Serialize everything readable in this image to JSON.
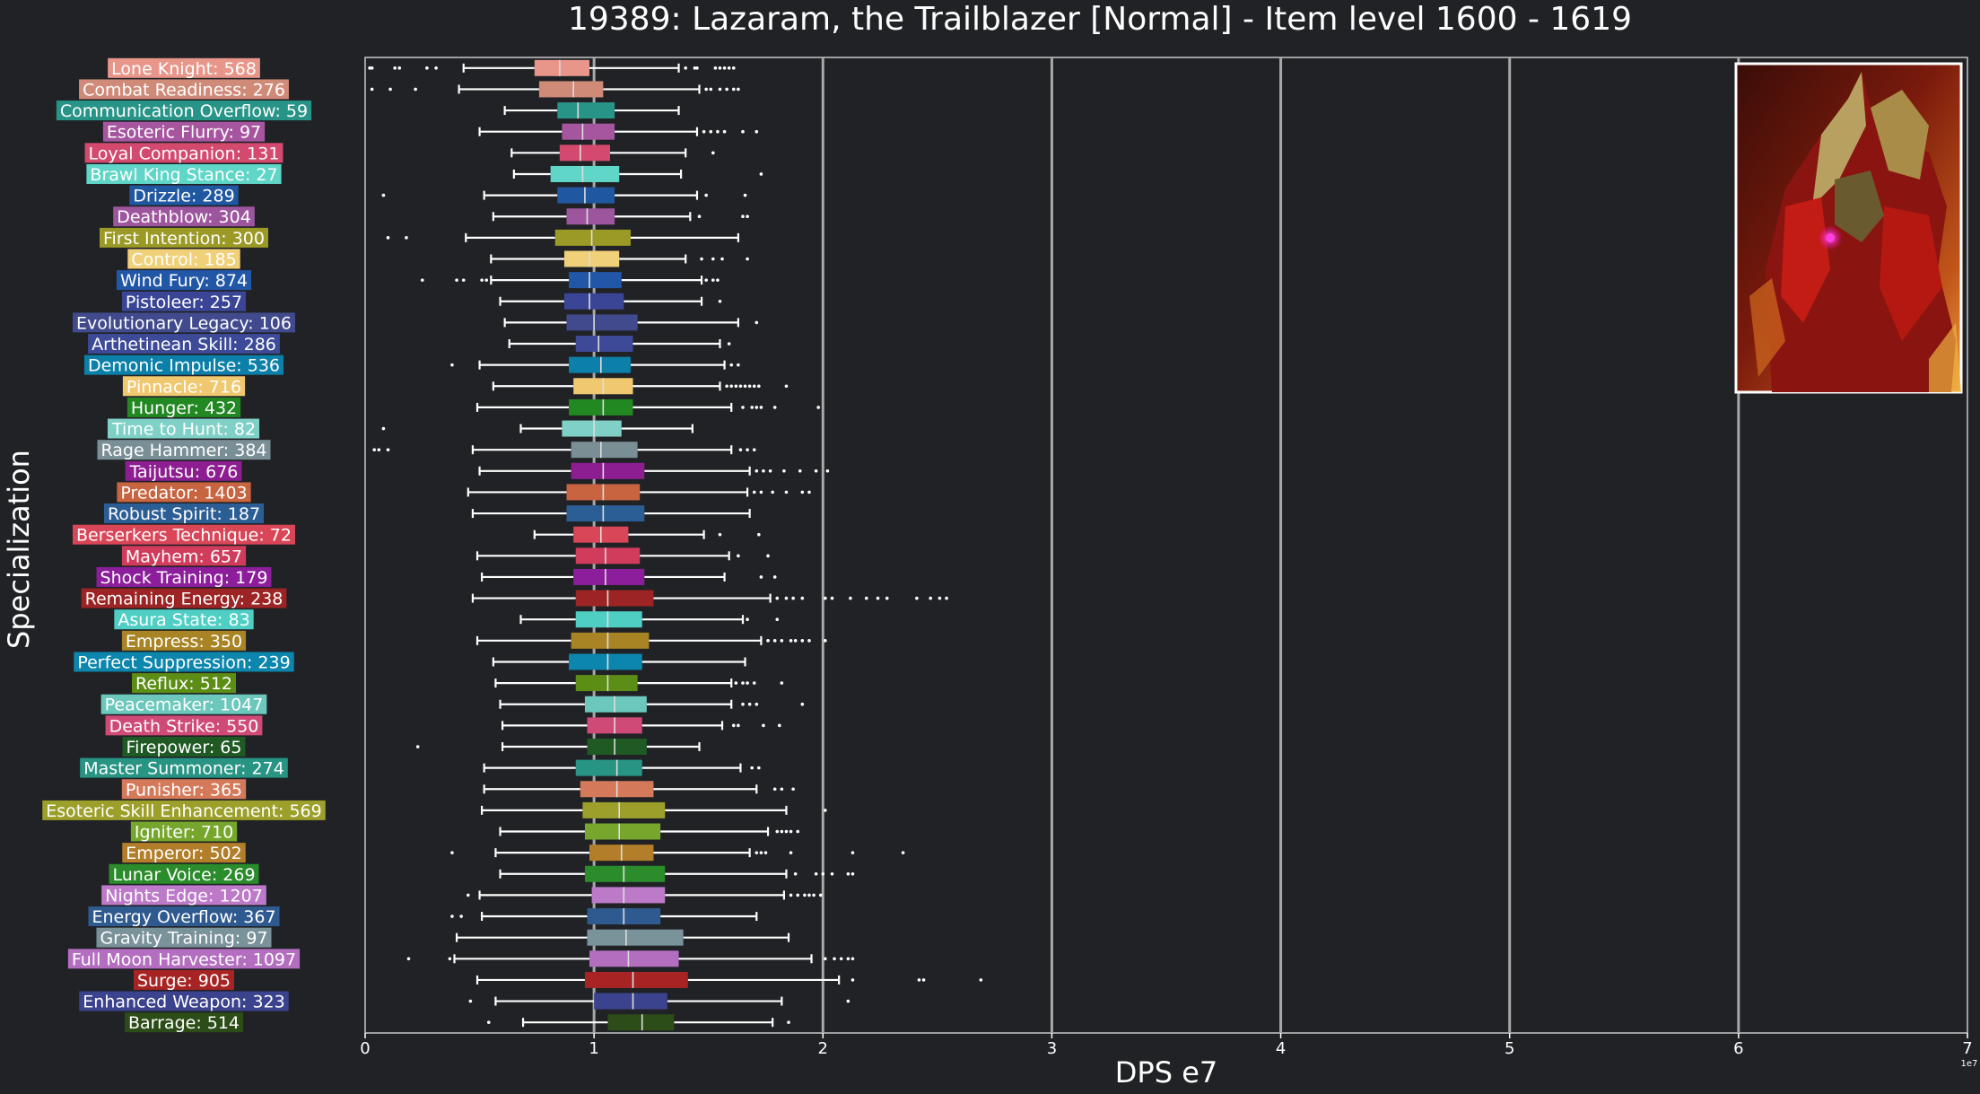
{
  "chart_data": {
    "type": "box",
    "title": "19389: Lazaram, the Trailblazer [Normal] - Item level 1600 - 1619",
    "xlabel": "DPS e7",
    "ylabel": "Specialization",
    "x_offset_label": "1e7",
    "xlim": [
      0,
      7
    ],
    "xticks": [
      0,
      1,
      2,
      3,
      4,
      5,
      6,
      7
    ],
    "grid": "vertical",
    "portrait_icon": "boss-portrait",
    "series": [
      {
        "label": "Lone Knight: 568",
        "color": "#e8968a",
        "whislo": 0.43,
        "q1": 0.74,
        "med": 0.85,
        "q3": 0.98,
        "whishi": 1.37,
        "fliers": [
          0.02,
          0.03,
          0.13,
          0.15,
          0.27,
          0.31,
          1.4,
          1.44,
          1.45,
          1.53,
          1.55,
          1.57,
          1.59,
          1.61
        ]
      },
      {
        "label": "Combat Readiness: 276",
        "color": "#d08a78",
        "whislo": 0.41,
        "q1": 0.76,
        "med": 0.91,
        "q3": 1.04,
        "whishi": 1.46,
        "fliers": [
          0.03,
          0.11,
          0.22,
          1.49,
          1.51,
          1.55,
          1.58,
          1.61,
          1.63
        ]
      },
      {
        "label": "Communication Overflow: 59",
        "color": "#289488",
        "whislo": 0.61,
        "q1": 0.84,
        "med": 0.93,
        "q3": 1.09,
        "whishi": 1.37,
        "fliers": []
      },
      {
        "label": "Esoteric Flurry: 97",
        "color": "#a6569f",
        "whislo": 0.5,
        "q1": 0.86,
        "med": 0.95,
        "q3": 1.09,
        "whishi": 1.45,
        "fliers": [
          1.48,
          1.51,
          1.54,
          1.57,
          1.65,
          1.71
        ]
      },
      {
        "label": "Loyal Companion: 131",
        "color": "#d34a6e",
        "whislo": 0.64,
        "q1": 0.85,
        "med": 0.94,
        "q3": 1.07,
        "whishi": 1.4,
        "fliers": [
          1.52
        ]
      },
      {
        "label": "Brawl King Stance: 27",
        "color": "#5fd6c8",
        "whislo": 0.65,
        "q1": 0.81,
        "med": 0.95,
        "q3": 1.11,
        "whishi": 1.38,
        "fliers": [
          1.73
        ]
      },
      {
        "label": "Drizzle: 289",
        "color": "#1f57a0",
        "whislo": 0.52,
        "q1": 0.84,
        "med": 0.96,
        "q3": 1.09,
        "whishi": 1.45,
        "fliers": [
          0.08,
          1.49,
          1.66
        ]
      },
      {
        "label": "Deathblow: 304",
        "color": "#9d569e",
        "whislo": 0.56,
        "q1": 0.88,
        "med": 0.97,
        "q3": 1.09,
        "whishi": 1.42,
        "fliers": [
          1.46,
          1.65,
          1.67
        ]
      },
      {
        "label": "First Intention: 300",
        "color": "#9c9a26",
        "whislo": 0.44,
        "q1": 0.83,
        "med": 0.99,
        "q3": 1.16,
        "whishi": 1.63,
        "fliers": [
          0.1,
          0.18
        ]
      },
      {
        "label": "Control: 185",
        "color": "#f0d078",
        "whislo": 0.55,
        "q1": 0.87,
        "med": 0.98,
        "q3": 1.11,
        "whishi": 1.4,
        "fliers": [
          1.47,
          1.52,
          1.56,
          1.67
        ]
      },
      {
        "label": "Wind Fury: 874",
        "color": "#2257a8",
        "whislo": 0.55,
        "q1": 0.89,
        "med": 0.98,
        "q3": 1.12,
        "whishi": 1.47,
        "fliers": [
          0.25,
          0.4,
          0.43,
          0.51,
          0.53,
          1.49,
          1.52,
          1.54
        ]
      },
      {
        "label": "Pistoleer: 257",
        "color": "#3a4596",
        "whislo": 0.59,
        "q1": 0.87,
        "med": 0.98,
        "q3": 1.13,
        "whishi": 1.47,
        "fliers": [
          1.55
        ]
      },
      {
        "label": "Evolutionary Legacy: 106",
        "color": "#414a8c",
        "whislo": 0.61,
        "q1": 0.88,
        "med": 1.0,
        "q3": 1.19,
        "whishi": 1.63,
        "fliers": [
          1.71
        ]
      },
      {
        "label": "Arthetinean Skill: 286",
        "color": "#3d4a98",
        "whislo": 0.63,
        "q1": 0.92,
        "med": 1.02,
        "q3": 1.17,
        "whishi": 1.55,
        "fliers": [
          1.59
        ]
      },
      {
        "label": "Demonic Impulse: 536",
        "color": "#0c80a8",
        "whislo": 0.5,
        "q1": 0.89,
        "med": 1.03,
        "q3": 1.16,
        "whishi": 1.57,
        "fliers": [
          0.38,
          1.6,
          1.63
        ]
      },
      {
        "label": "Pinnacle: 716",
        "color": "#f0c870",
        "whislo": 0.56,
        "q1": 0.91,
        "med": 1.04,
        "q3": 1.17,
        "whishi": 1.55,
        "fliers": [
          1.58,
          1.6,
          1.62,
          1.64,
          1.66,
          1.68,
          1.7,
          1.72,
          1.84
        ]
      },
      {
        "label": "Hunger: 432",
        "color": "#228822",
        "whislo": 0.49,
        "q1": 0.89,
        "med": 1.04,
        "q3": 1.17,
        "whishi": 1.6,
        "fliers": [
          1.65,
          1.69,
          1.71,
          1.73,
          1.79,
          1.98
        ]
      },
      {
        "label": "Time to Hunt: 82",
        "color": "#7fd0c6",
        "whislo": 0.68,
        "q1": 0.86,
        "med": 1.0,
        "q3": 1.12,
        "whishi": 1.43,
        "fliers": [
          0.08
        ]
      },
      {
        "label": "Rage Hammer: 384",
        "color": "#7a8e96",
        "whislo": 0.47,
        "q1": 0.9,
        "med": 1.03,
        "q3": 1.19,
        "whishi": 1.6,
        "fliers": [
          0.04,
          0.06,
          0.1,
          1.64,
          1.67,
          1.7
        ]
      },
      {
        "label": "Taijutsu: 676",
        "color": "#8c1e92",
        "whislo": 0.5,
        "q1": 0.9,
        "med": 1.04,
        "q3": 1.22,
        "whishi": 1.68,
        "fliers": [
          1.71,
          1.74,
          1.77,
          1.83,
          1.9,
          1.97,
          2.02
        ]
      },
      {
        "label": "Predator: 1403",
        "color": "#c86440",
        "whislo": 0.45,
        "q1": 0.88,
        "med": 1.04,
        "q3": 1.2,
        "whishi": 1.67,
        "fliers": [
          1.7,
          1.73,
          1.78,
          1.84,
          1.91,
          1.94
        ]
      },
      {
        "label": "Robust Spirit: 187",
        "color": "#2c5e96",
        "whislo": 0.47,
        "q1": 0.88,
        "med": 1.04,
        "q3": 1.22,
        "whishi": 1.68,
        "fliers": []
      },
      {
        "label": "Berserkers Technique: 72",
        "color": "#d94658",
        "whislo": 0.74,
        "q1": 0.91,
        "med": 1.03,
        "q3": 1.15,
        "whishi": 1.48,
        "fliers": [
          1.55,
          1.72
        ]
      },
      {
        "label": "Mayhem: 657",
        "color": "#d13c5c",
        "whislo": 0.49,
        "q1": 0.92,
        "med": 1.05,
        "q3": 1.2,
        "whishi": 1.59,
        "fliers": [
          1.63,
          1.76
        ]
      },
      {
        "label": "Shock Training: 179",
        "color": "#8c1e9c",
        "whislo": 0.51,
        "q1": 0.91,
        "med": 1.05,
        "q3": 1.22,
        "whishi": 1.57,
        "fliers": [
          1.73,
          1.79
        ]
      },
      {
        "label": "Remaining Energy: 238",
        "color": "#9c2424",
        "whislo": 0.47,
        "q1": 0.92,
        "med": 1.06,
        "q3": 1.26,
        "whishi": 1.77,
        "fliers": [
          1.8,
          1.84,
          1.87,
          1.91,
          2.01,
          2.04,
          2.12,
          2.19,
          2.24,
          2.28,
          2.41,
          2.47,
          2.51,
          2.54
        ]
      },
      {
        "label": "Asura State: 83",
        "color": "#4fcfc4",
        "whislo": 0.68,
        "q1": 0.92,
        "med": 1.06,
        "q3": 1.21,
        "whishi": 1.65,
        "fliers": [
          1.67,
          1.8
        ]
      },
      {
        "label": "Empress: 350",
        "color": "#a88424",
        "whislo": 0.49,
        "q1": 0.9,
        "med": 1.06,
        "q3": 1.24,
        "whishi": 1.73,
        "fliers": [
          1.76,
          1.79,
          1.82,
          1.86,
          1.88,
          1.91,
          1.94,
          2.01
        ]
      },
      {
        "label": "Perfect Suppression: 239",
        "color": "#0c86ac",
        "whislo": 0.56,
        "q1": 0.89,
        "med": 1.06,
        "q3": 1.21,
        "whishi": 1.66,
        "fliers": []
      },
      {
        "label": "Reflux: 512",
        "color": "#5c8e16",
        "whislo": 0.57,
        "q1": 0.92,
        "med": 1.06,
        "q3": 1.19,
        "whishi": 1.6,
        "fliers": [
          1.62,
          1.65,
          1.67,
          1.7,
          1.82
        ]
      },
      {
        "label": "Peacemaker: 1047",
        "color": "#6cc8bc",
        "whislo": 0.59,
        "q1": 0.96,
        "med": 1.09,
        "q3": 1.23,
        "whishi": 1.6,
        "fliers": [
          1.65,
          1.68,
          1.71,
          1.91
        ]
      },
      {
        "label": "Death Strike: 550",
        "color": "#d04a78",
        "whislo": 0.6,
        "q1": 0.97,
        "med": 1.09,
        "q3": 1.21,
        "whishi": 1.56,
        "fliers": [
          1.61,
          1.63,
          1.74,
          1.81
        ]
      },
      {
        "label": "Firepower: 65",
        "color": "#1f5a24",
        "whislo": 0.6,
        "q1": 0.97,
        "med": 1.09,
        "q3": 1.23,
        "whishi": 1.46,
        "fliers": [
          0.23
        ]
      },
      {
        "label": "Master Summoner: 274",
        "color": "#289484",
        "whislo": 0.52,
        "q1": 0.92,
        "med": 1.1,
        "q3": 1.21,
        "whishi": 1.64,
        "fliers": [
          1.69,
          1.72
        ]
      },
      {
        "label": "Punisher: 365",
        "color": "#d47a5a",
        "whislo": 0.52,
        "q1": 0.94,
        "med": 1.1,
        "q3": 1.26,
        "whishi": 1.71,
        "fliers": [
          1.79,
          1.82,
          1.87
        ]
      },
      {
        "label": "Esoteric Skill Enhancement: 569",
        "color": "#9ca02a",
        "whislo": 0.51,
        "q1": 0.95,
        "med": 1.11,
        "q3": 1.31,
        "whishi": 1.84,
        "fliers": [
          2.01
        ]
      },
      {
        "label": "Igniter: 710",
        "color": "#76a62c",
        "whislo": 0.59,
        "q1": 0.96,
        "med": 1.11,
        "q3": 1.29,
        "whishi": 1.76,
        "fliers": [
          1.8,
          1.82,
          1.84,
          1.86,
          1.89
        ]
      },
      {
        "label": "Emperor: 502",
        "color": "#b27e2a",
        "whislo": 0.57,
        "q1": 0.98,
        "med": 1.12,
        "q3": 1.26,
        "whishi": 1.68,
        "fliers": [
          0.38,
          1.71,
          1.73,
          1.75,
          1.86,
          2.13,
          2.35
        ]
      },
      {
        "label": "Lunar Voice: 269",
        "color": "#2a8c2a",
        "whislo": 0.59,
        "q1": 0.96,
        "med": 1.13,
        "q3": 1.31,
        "whishi": 1.84,
        "fliers": [
          1.88,
          1.97,
          2.0,
          2.04,
          2.11,
          2.13
        ]
      },
      {
        "label": "Nights Edge: 1207",
        "color": "#bc7ac8",
        "whislo": 0.5,
        "q1": 0.99,
        "med": 1.13,
        "q3": 1.31,
        "whishi": 1.83,
        "fliers": [
          0.45,
          1.86,
          1.89,
          1.92,
          1.94,
          1.96,
          1.99
        ]
      },
      {
        "label": "Energy Overflow: 367",
        "color": "#2f5a90",
        "whislo": 0.51,
        "q1": 0.97,
        "med": 1.13,
        "q3": 1.29,
        "whishi": 1.71,
        "fliers": [
          0.38,
          0.42
        ]
      },
      {
        "label": "Gravity Training: 97",
        "color": "#7a929a",
        "whislo": 0.4,
        "q1": 0.97,
        "med": 1.14,
        "q3": 1.39,
        "whishi": 1.85,
        "fliers": []
      },
      {
        "label": "Full Moon Harvester: 1097",
        "color": "#b46ec0",
        "whislo": 0.39,
        "q1": 0.98,
        "med": 1.15,
        "q3": 1.37,
        "whishi": 1.95,
        "fliers": [
          0.19,
          0.37,
          2.01,
          2.05,
          2.08,
          2.11,
          2.13
        ]
      },
      {
        "label": "Surge: 905",
        "color": "#a82424",
        "whislo": 0.49,
        "q1": 0.96,
        "med": 1.17,
        "q3": 1.41,
        "whishi": 2.07,
        "fliers": [
          2.13,
          2.42,
          2.44,
          2.69
        ]
      },
      {
        "label": "Enhanced Weapon: 323",
        "color": "#3c438e",
        "whislo": 0.57,
        "q1": 1.0,
        "med": 1.17,
        "q3": 1.32,
        "whishi": 1.82,
        "fliers": [
          0.46,
          2.11
        ]
      },
      {
        "label": "Barrage: 514",
        "color": "#2c4c18",
        "whislo": 0.69,
        "q1": 1.06,
        "med": 1.21,
        "q3": 1.35,
        "whishi": 1.78,
        "fliers": [
          0.54,
          1.85
        ]
      }
    ]
  }
}
